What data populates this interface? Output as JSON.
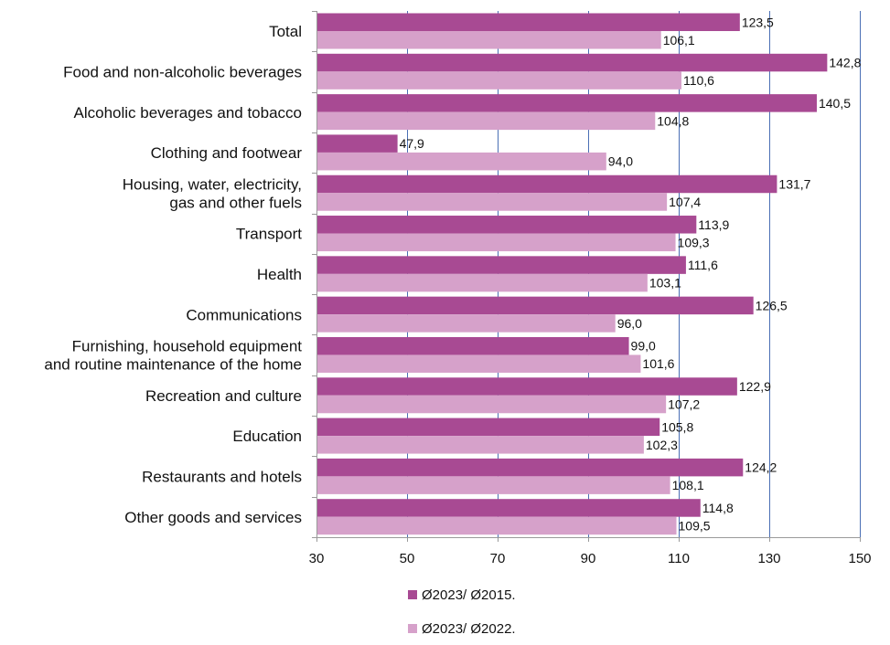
{
  "chart_data": {
    "type": "bar",
    "orientation": "horizontal",
    "categories": [
      "Total",
      "Food and non-alcoholic beverages",
      "Alcoholic beverages and tobacco",
      "Clothing and footwear",
      "Housing, water, electricity,\ngas and other fuels",
      "Transport",
      "Health",
      "Communications",
      "Furnishing, household equipment\nand routine maintenance of the home",
      "Recreation and culture",
      "Education",
      "Restaurants and hotels",
      "Other goods and services"
    ],
    "series": [
      {
        "name": "Ø2023/ Ø2015.",
        "color": "#a84a93",
        "values": [
          123.5,
          142.8,
          140.5,
          47.9,
          131.7,
          113.9,
          111.6,
          126.5,
          99.0,
          122.9,
          105.8,
          124.2,
          114.8
        ],
        "labels": [
          "123,5",
          "142,8",
          "140,5",
          "47,9",
          "131,7",
          "113,9",
          "111,6",
          "126,5",
          "99,0",
          "122,9",
          "105,8",
          "124,2",
          "114,8"
        ]
      },
      {
        "name": "Ø2023/ Ø2022.",
        "color": "#d6a1ca",
        "values": [
          106.1,
          110.6,
          104.8,
          94.0,
          107.4,
          109.3,
          103.1,
          96.0,
          101.6,
          107.2,
          102.3,
          108.1,
          109.5
        ],
        "labels": [
          "106,1",
          "110,6",
          "104,8",
          "94,0",
          "107,4",
          "109,3",
          "103,1",
          "96,0",
          "101,6",
          "107,2",
          "102,3",
          "108,1",
          "109,5"
        ]
      }
    ],
    "xlim": [
      30,
      150
    ],
    "xticks": [
      30,
      50,
      70,
      90,
      110,
      130,
      150
    ],
    "grid": true,
    "legend_position": "bottom",
    "title": "",
    "xlabel": "",
    "ylabel": ""
  }
}
